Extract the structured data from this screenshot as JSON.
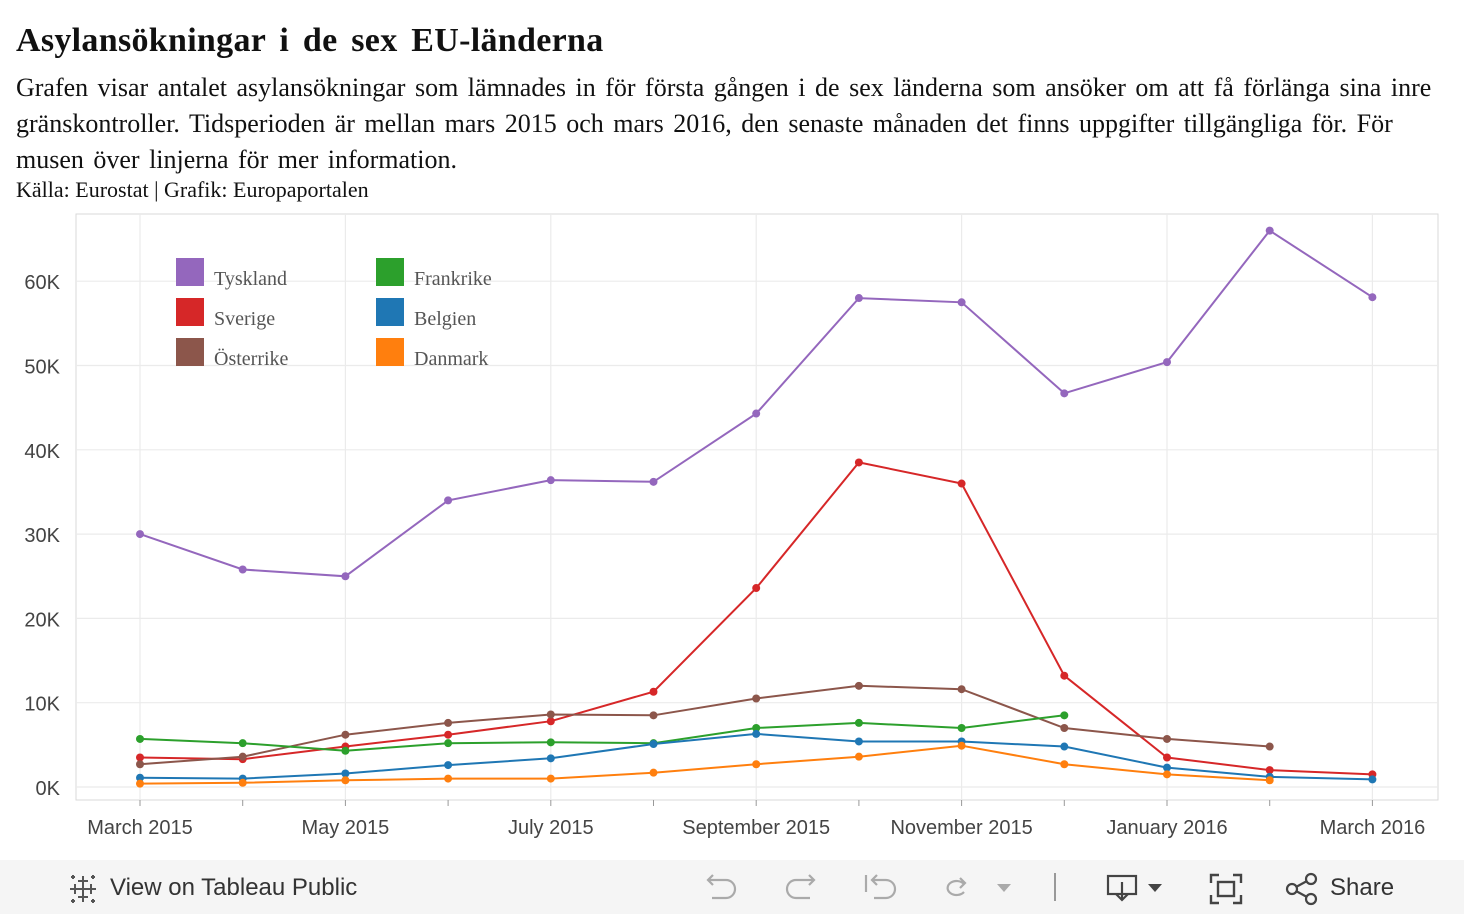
{
  "header": {
    "title": "Asylansökningar i de sex EU-länderna",
    "subtitle": "Grafen visar antalet asylansökningar som lämnades in för första gången i de sex länderna som ansöker om att få förlänga sina inre gränskontroller. Tidsperioden är mellan mars 2015 och mars 2016, den senaste månaden det finns uppgifter tillgängliga för. För musen över linjerna för mer information.",
    "source": "Källa: Eurostat | Grafik: Europaportalen"
  },
  "chart_data": {
    "type": "line",
    "title": "Asylansökningar i de sex EU-länderna",
    "xlabel": "",
    "ylabel": "",
    "ylim": [
      0,
      70000
    ],
    "grid": true,
    "legend_position": "top-left",
    "x": [
      "2015-03",
      "2015-04",
      "2015-05",
      "2015-06",
      "2015-07",
      "2015-08",
      "2015-09",
      "2015-10",
      "2015-11",
      "2015-12",
      "2016-01",
      "2016-02",
      "2016-03"
    ],
    "x_tick_labels": [
      "March 2015",
      "May 2015",
      "July 2015",
      "September 2015",
      "November 2015",
      "January 2016",
      "March 2016"
    ],
    "y_ticks": [
      0,
      10000,
      20000,
      30000,
      40000,
      50000,
      60000
    ],
    "y_tick_labels": [
      "0K",
      "10K",
      "20K",
      "30K",
      "40K",
      "50K",
      "60K"
    ],
    "series": [
      {
        "name": "Tyskland",
        "color": "#9467bd",
        "values": [
          30000,
          25800,
          25000,
          34000,
          36400,
          36200,
          44300,
          58000,
          57500,
          46700,
          50400,
          66000,
          58100
        ]
      },
      {
        "name": "Sverige",
        "color": "#d62728",
        "values": [
          3500,
          3300,
          4800,
          6200,
          7800,
          11300,
          23600,
          38500,
          36000,
          13200,
          3500,
          2000,
          1500
        ]
      },
      {
        "name": "Österrike",
        "color": "#8c564b",
        "values": [
          2700,
          3600,
          6200,
          7600,
          8600,
          8500,
          10500,
          12000,
          11600,
          7000,
          5700,
          4800,
          null
        ]
      },
      {
        "name": "Frankrike",
        "color": "#2ca02c",
        "values": [
          5700,
          5200,
          4300,
          5200,
          5300,
          5200,
          7000,
          7600,
          7000,
          8500,
          null,
          null,
          null
        ]
      },
      {
        "name": "Belgien",
        "color": "#1f77b4",
        "values": [
          1100,
          1000,
          1600,
          2600,
          3400,
          5100,
          6300,
          5400,
          5400,
          4800,
          2300,
          1200,
          900
        ]
      },
      {
        "name": "Danmark",
        "color": "#ff7f0e",
        "values": [
          400,
          500,
          800,
          1000,
          1000,
          1700,
          2700,
          3600,
          4900,
          2700,
          1500,
          800,
          null
        ]
      }
    ]
  },
  "footer": {
    "view_label": "View on Tableau Public",
    "share_label": "Share"
  }
}
